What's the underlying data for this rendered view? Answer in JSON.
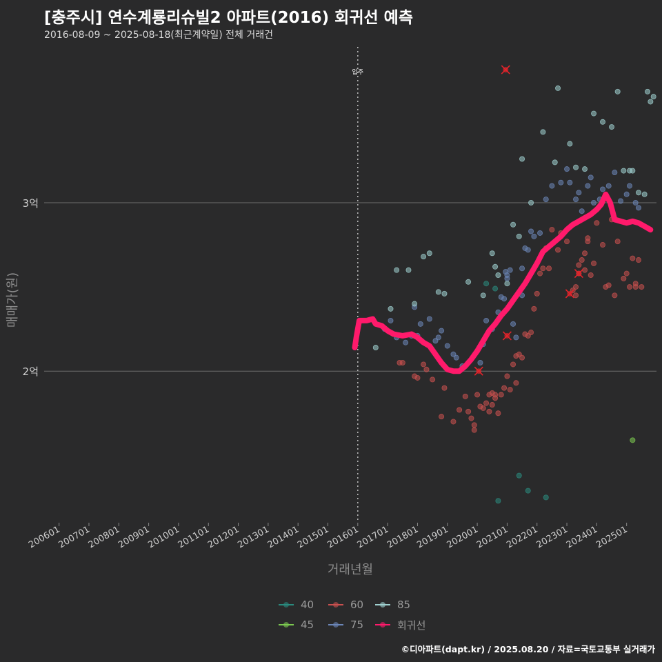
{
  "header": {
    "title": "[충주시] 연수계룡리슈빌2 아파트(2016) 회귀선 예측",
    "subtitle": "2016-08-09 ~ 2025-08-18(최근계약일) 전체 거래건"
  },
  "footer": {
    "credit": "©디아파트(dapt.kr) / 2025.08.20 / 자료=국토교통부 실거래가"
  },
  "colors": {
    "background": "#2a2a2b",
    "grid": "#6e6e6e",
    "s40": "#2a8a7e",
    "s45": "#7bc850",
    "s60": "#c9504f",
    "s75": "#6b86b8",
    "s85": "#9fd0cf",
    "trend": "#ff1a6b",
    "highlight": "#e3242b"
  },
  "legend": {
    "items": [
      {
        "label": "40",
        "color": "#2a8a7e"
      },
      {
        "label": "60",
        "color": "#c9504f"
      },
      {
        "label": "85",
        "color": "#9fd0cf"
      },
      {
        "label": "45",
        "color": "#7bc850"
      },
      {
        "label": "75",
        "color": "#6b86b8"
      },
      {
        "label": "회귀선",
        "color": "#ff1a6b"
      }
    ]
  },
  "chart_data": {
    "type": "scatter",
    "title": "[충주시] 연수계룡리슈빌2 아파트(2016) 회귀선 예측",
    "subtitle": "2016-08-09 ~ 2025-08-18(최근계약일) 전체 거래건",
    "xlabel": "거래년월",
    "ylabel": "매매가(원)",
    "xlim": [
      2005.5,
      2026.0
    ],
    "ylim": [
      1.1,
      3.95
    ],
    "x_ticks": [
      2006,
      2007,
      2008,
      2009,
      2010,
      2011,
      2012,
      2013,
      2014,
      2015,
      2016,
      2017,
      2018,
      2019,
      2020,
      2021,
      2022,
      2023,
      2024,
      2025
    ],
    "x_tick_labels": [
      "200601",
      "200701",
      "200801",
      "200901",
      "201001",
      "201101",
      "201201",
      "201301",
      "201401",
      "201501",
      "201601",
      "201701",
      "201801",
      "201901",
      "202001",
      "202101",
      "202201",
      "202301",
      "202401",
      "202501"
    ],
    "y_ticks": [
      2,
      3
    ],
    "y_tick_labels": [
      "2억",
      "3억"
    ],
    "annotation": {
      "x": 2016.0,
      "label": "입주"
    },
    "series": [
      {
        "name": "40",
        "color": "#2a8a7e",
        "points": [
          [
            2020.7,
            1.23
          ],
          [
            2021.4,
            1.38
          ],
          [
            2021.7,
            1.29
          ],
          [
            2022.3,
            1.25
          ],
          [
            2020.3,
            2.52
          ],
          [
            2020.6,
            2.49
          ]
        ]
      },
      {
        "name": "45",
        "color": "#7bc850",
        "points": [
          [
            2025.2,
            1.59
          ]
        ]
      },
      {
        "name": "60",
        "color": "#c9504f",
        "points": [
          [
            2017.4,
            2.05
          ],
          [
            2017.5,
            2.05
          ],
          [
            2017.9,
            1.97
          ],
          [
            2018.0,
            1.96
          ],
          [
            2018.2,
            2.04
          ],
          [
            2018.3,
            2.01
          ],
          [
            2018.5,
            1.95
          ],
          [
            2018.8,
            1.73
          ],
          [
            2018.9,
            1.9
          ],
          [
            2019.2,
            1.7
          ],
          [
            2019.4,
            1.77
          ],
          [
            2019.6,
            1.85
          ],
          [
            2019.7,
            1.76
          ],
          [
            2019.8,
            1.72
          ],
          [
            2019.9,
            1.68
          ],
          [
            2019.9,
            1.65
          ],
          [
            2020.0,
            1.86
          ],
          [
            2020.1,
            1.79
          ],
          [
            2020.2,
            1.78
          ],
          [
            2020.3,
            1.81
          ],
          [
            2020.4,
            1.76
          ],
          [
            2020.4,
            1.86
          ],
          [
            2020.5,
            1.8
          ],
          [
            2020.5,
            1.87
          ],
          [
            2020.6,
            1.84
          ],
          [
            2020.6,
            1.86
          ],
          [
            2020.7,
            1.75
          ],
          [
            2020.8,
            1.86
          ],
          [
            2020.9,
            1.9
          ],
          [
            2021.0,
            1.97
          ],
          [
            2021.1,
            1.89
          ],
          [
            2021.2,
            2.04
          ],
          [
            2021.3,
            2.09
          ],
          [
            2021.3,
            1.93
          ],
          [
            2021.4,
            2.1
          ],
          [
            2021.5,
            2.08
          ],
          [
            2021.6,
            2.22
          ],
          [
            2021.7,
            2.21
          ],
          [
            2021.8,
            2.23
          ],
          [
            2021.9,
            2.37
          ],
          [
            2022.0,
            2.46
          ],
          [
            2022.1,
            2.58
          ],
          [
            2022.2,
            2.61
          ],
          [
            2022.3,
            2.73
          ],
          [
            2022.4,
            2.61
          ],
          [
            2022.5,
            2.84
          ],
          [
            2022.7,
            2.72
          ],
          [
            2022.8,
            2.82
          ],
          [
            2023.0,
            2.77
          ],
          [
            2023.2,
            2.48
          ],
          [
            2023.3,
            2.45
          ],
          [
            2023.3,
            2.5
          ],
          [
            2023.4,
            2.58
          ],
          [
            2023.4,
            2.63
          ],
          [
            2023.5,
            2.66
          ],
          [
            2023.6,
            2.6
          ],
          [
            2023.6,
            2.7
          ],
          [
            2023.7,
            2.79
          ],
          [
            2023.7,
            2.77
          ],
          [
            2023.8,
            2.57
          ],
          [
            2023.9,
            2.64
          ],
          [
            2024.0,
            2.88
          ],
          [
            2024.2,
            2.75
          ],
          [
            2024.3,
            2.5
          ],
          [
            2024.4,
            2.51
          ],
          [
            2024.5,
            2.9
          ],
          [
            2024.6,
            2.45
          ],
          [
            2024.7,
            2.77
          ],
          [
            2024.9,
            2.55
          ],
          [
            2025.0,
            2.58
          ],
          [
            2025.1,
            2.5
          ],
          [
            2025.2,
            2.67
          ],
          [
            2025.3,
            2.52
          ],
          [
            2025.3,
            2.5
          ],
          [
            2025.4,
            2.66
          ],
          [
            2025.5,
            2.5
          ]
        ]
      },
      {
        "name": "75",
        "color": "#6b86b8",
        "points": [
          [
            2016.9,
            2.25
          ],
          [
            2017.1,
            2.3
          ],
          [
            2017.2,
            2.22
          ],
          [
            2017.3,
            2.2
          ],
          [
            2017.6,
            2.17
          ],
          [
            2017.8,
            2.21
          ],
          [
            2017.9,
            2.38
          ],
          [
            2018.0,
            2.21
          ],
          [
            2018.1,
            2.28
          ],
          [
            2018.4,
            2.31
          ],
          [
            2018.6,
            2.18
          ],
          [
            2018.7,
            2.2
          ],
          [
            2018.8,
            2.24
          ],
          [
            2019.0,
            2.15
          ],
          [
            2019.2,
            2.1
          ],
          [
            2019.3,
            2.08
          ],
          [
            2019.5,
            2.03
          ],
          [
            2019.7,
            2.05
          ],
          [
            2020.0,
            2.12
          ],
          [
            2020.1,
            2.05
          ],
          [
            2020.2,
            2.16
          ],
          [
            2020.3,
            2.3
          ],
          [
            2020.5,
            2.25
          ],
          [
            2020.7,
            2.35
          ],
          [
            2020.8,
            2.44
          ],
          [
            2020.9,
            2.43
          ],
          [
            2020.95,
            2.59
          ],
          [
            2021.0,
            2.57
          ],
          [
            2021.0,
            2.55
          ],
          [
            2021.1,
            2.6
          ],
          [
            2021.2,
            2.28
          ],
          [
            2021.3,
            2.2
          ],
          [
            2021.5,
            2.45
          ],
          [
            2021.5,
            2.61
          ],
          [
            2021.6,
            2.73
          ],
          [
            2021.7,
            2.72
          ],
          [
            2021.8,
            2.83
          ],
          [
            2021.9,
            2.8
          ],
          [
            2022.1,
            2.82
          ],
          [
            2022.3,
            3.02
          ],
          [
            2022.5,
            3.1
          ],
          [
            2022.8,
            3.12
          ],
          [
            2023.0,
            3.2
          ],
          [
            2023.1,
            3.12
          ],
          [
            2023.3,
            3.02
          ],
          [
            2023.4,
            3.06
          ],
          [
            2023.5,
            2.95
          ],
          [
            2023.7,
            3.1
          ],
          [
            2023.8,
            3.15
          ],
          [
            2023.9,
            3.0
          ],
          [
            2024.1,
            3.02
          ],
          [
            2024.2,
            3.08
          ],
          [
            2024.4,
            3.1
          ],
          [
            2024.6,
            3.18
          ],
          [
            2024.8,
            3.01
          ],
          [
            2025.0,
            3.05
          ],
          [
            2025.1,
            3.1
          ],
          [
            2025.3,
            3.0
          ],
          [
            2025.4,
            2.97
          ]
        ]
      },
      {
        "name": "85",
        "color": "#9fd0cf",
        "points": [
          [
            2016.6,
            2.14
          ],
          [
            2017.1,
            2.37
          ],
          [
            2017.3,
            2.6
          ],
          [
            2017.7,
            2.6
          ],
          [
            2017.9,
            2.4
          ],
          [
            2018.2,
            2.68
          ],
          [
            2018.4,
            2.7
          ],
          [
            2018.7,
            2.47
          ],
          [
            2018.9,
            2.46
          ],
          [
            2019.7,
            2.53
          ],
          [
            2020.2,
            2.45
          ],
          [
            2020.5,
            2.7
          ],
          [
            2020.6,
            2.62
          ],
          [
            2020.7,
            2.57
          ],
          [
            2021.0,
            2.52
          ],
          [
            2021.2,
            2.87
          ],
          [
            2021.4,
            2.8
          ],
          [
            2021.8,
            3.0
          ],
          [
            2022.2,
            3.42
          ],
          [
            2022.6,
            3.24
          ],
          [
            2023.1,
            3.35
          ],
          [
            2023.3,
            3.21
          ],
          [
            2023.6,
            3.2
          ],
          [
            2023.9,
            3.53
          ],
          [
            2024.2,
            3.48
          ],
          [
            2024.5,
            3.45
          ],
          [
            2024.9,
            3.19
          ],
          [
            2025.1,
            3.19
          ],
          [
            2025.2,
            3.19
          ],
          [
            2025.4,
            3.06
          ],
          [
            2025.6,
            3.05
          ],
          [
            2025.7,
            3.66
          ],
          [
            2025.8,
            3.6
          ],
          [
            2025.9,
            3.63
          ],
          [
            2021.5,
            3.26
          ],
          [
            2022.7,
            3.68
          ],
          [
            2024.7,
            3.66
          ]
        ]
      },
      {
        "name": "회귀선",
        "color": "#ff1a6b",
        "points": [
          [
            2015.9,
            2.14
          ],
          [
            2015.95,
            2.2
          ],
          [
            2016.0,
            2.25
          ],
          [
            2016.05,
            2.3
          ],
          [
            2016.3,
            2.3
          ],
          [
            2016.5,
            2.31
          ],
          [
            2016.6,
            2.28
          ],
          [
            2016.8,
            2.27
          ],
          [
            2017.0,
            2.24
          ],
          [
            2017.2,
            2.22
          ],
          [
            2017.5,
            2.21
          ],
          [
            2017.8,
            2.22
          ],
          [
            2018.0,
            2.2
          ],
          [
            2018.2,
            2.17
          ],
          [
            2018.4,
            2.15
          ],
          [
            2018.6,
            2.1
          ],
          [
            2018.8,
            2.05
          ],
          [
            2019.0,
            2.01
          ],
          [
            2019.2,
            2.0
          ],
          [
            2019.4,
            2.0
          ],
          [
            2019.6,
            2.03
          ],
          [
            2019.8,
            2.07
          ],
          [
            2020.0,
            2.12
          ],
          [
            2020.2,
            2.18
          ],
          [
            2020.4,
            2.24
          ],
          [
            2020.6,
            2.28
          ],
          [
            2020.8,
            2.33
          ],
          [
            2021.0,
            2.37
          ],
          [
            2021.2,
            2.42
          ],
          [
            2021.4,
            2.47
          ],
          [
            2021.6,
            2.52
          ],
          [
            2021.8,
            2.58
          ],
          [
            2022.0,
            2.64
          ],
          [
            2022.2,
            2.71
          ],
          [
            2022.4,
            2.74
          ],
          [
            2022.6,
            2.77
          ],
          [
            2022.8,
            2.8
          ],
          [
            2023.0,
            2.84
          ],
          [
            2023.2,
            2.87
          ],
          [
            2023.4,
            2.89
          ],
          [
            2023.6,
            2.91
          ],
          [
            2023.8,
            2.93
          ],
          [
            2024.0,
            2.96
          ],
          [
            2024.15,
            2.99
          ],
          [
            2024.3,
            3.05
          ],
          [
            2024.45,
            3.0
          ],
          [
            2024.6,
            2.9
          ],
          [
            2024.8,
            2.89
          ],
          [
            2025.0,
            2.88
          ],
          [
            2025.2,
            2.89
          ],
          [
            2025.4,
            2.88
          ],
          [
            2025.6,
            2.86
          ],
          [
            2025.8,
            2.84
          ]
        ]
      }
    ],
    "highlights": [
      [
        2020.95,
        3.79
      ],
      [
        2021.0,
        2.21
      ],
      [
        2020.05,
        2.0
      ],
      [
        2023.1,
        2.46
      ],
      [
        2023.4,
        2.58
      ]
    ]
  }
}
